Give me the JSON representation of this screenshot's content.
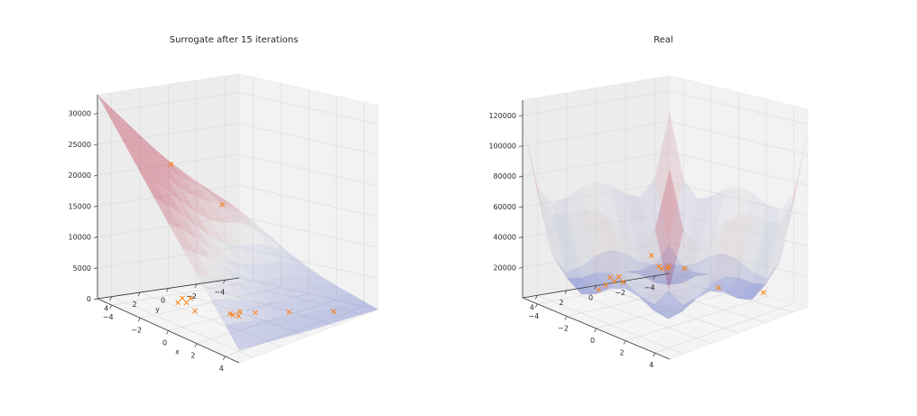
{
  "chart_data": [
    {
      "type": "surface3d",
      "title": "Surrogate after 15 iterations",
      "xlabel": "x",
      "ylabel": "y",
      "xticks": [
        -4,
        -2,
        0,
        2,
        4
      ],
      "yticks": [
        -4,
        -2,
        0,
        2,
        4
      ],
      "zticks": [
        0,
        5000,
        10000,
        15000,
        20000,
        25000,
        30000
      ],
      "zlim": [
        0,
        33000
      ],
      "colormap": [
        "#3b4cc0",
        "#dddddd",
        "#b40426"
      ],
      "corner_values": {
        "x-5_y-5": 8000,
        "x5_y-5": 0,
        "x-5_y5": 33000,
        "x5_y5": 2000
      },
      "center_value": 14000,
      "samples": [
        {
          "x": -1.5,
          "y": 3.3,
          "z": 24500
        },
        {
          "x": -4.2,
          "y": -3.0,
          "z": 13000
        },
        {
          "x": -3.0,
          "y": 1.0,
          "z": 400
        },
        {
          "x": -2.6,
          "y": 0.8,
          "z": 600
        },
        {
          "x": -2.4,
          "y": 1.3,
          "z": 300
        },
        {
          "x": -2.7,
          "y": 1.6,
          "z": 200
        },
        {
          "x": -1.2,
          "y": 1.9,
          "z": 300
        },
        {
          "x": 0.0,
          "y": 0.6,
          "z": 100
        },
        {
          "x": 0.3,
          "y": 0.7,
          "z": 200
        },
        {
          "x": 0.5,
          "y": 0.5,
          "z": 100
        },
        {
          "x": 0.4,
          "y": 0.3,
          "z": 600
        },
        {
          "x": 0.8,
          "y": -0.4,
          "z": 300
        },
        {
          "x": 1.8,
          "y": -1.8,
          "z": 200
        },
        {
          "x": 3.4,
          "y": -3.4,
          "z": 100
        }
      ],
      "marker_color": "#ff7f0e"
    },
    {
      "type": "surface3d",
      "title": "Real",
      "xlabel": "",
      "ylabel": "",
      "xticks": [
        -4,
        -2,
        0,
        2,
        4
      ],
      "yticks": [
        -4,
        -2,
        0,
        2,
        4
      ],
      "zticks": [
        20000,
        40000,
        60000,
        80000,
        100000,
        120000
      ],
      "zlim": [
        0,
        130000
      ],
      "colormap": [
        "#3b4cc0",
        "#dddddd",
        "#b40426"
      ],
      "peak_value": 125000,
      "samples": [
        {
          "x": -1.5,
          "y": 3.3,
          "z": 24500
        },
        {
          "x": -4.2,
          "y": -3.0,
          "z": 13000
        },
        {
          "x": -3.0,
          "y": 1.0,
          "z": 400
        },
        {
          "x": -2.6,
          "y": 0.8,
          "z": 600
        },
        {
          "x": -2.4,
          "y": 1.3,
          "z": 300
        },
        {
          "x": -2.7,
          "y": 1.6,
          "z": 200
        },
        {
          "x": -1.2,
          "y": 1.9,
          "z": 300
        },
        {
          "x": 0.0,
          "y": 0.6,
          "z": 100
        },
        {
          "x": 0.3,
          "y": 0.7,
          "z": 200
        },
        {
          "x": 0.5,
          "y": 0.5,
          "z": 100
        },
        {
          "x": 0.4,
          "y": 0.3,
          "z": 600
        },
        {
          "x": 0.8,
          "y": -0.4,
          "z": 300
        },
        {
          "x": 1.8,
          "y": -1.8,
          "z": 200
        },
        {
          "x": 3.4,
          "y": -3.4,
          "z": 100
        }
      ],
      "marker_color": "#ff7f0e"
    }
  ]
}
